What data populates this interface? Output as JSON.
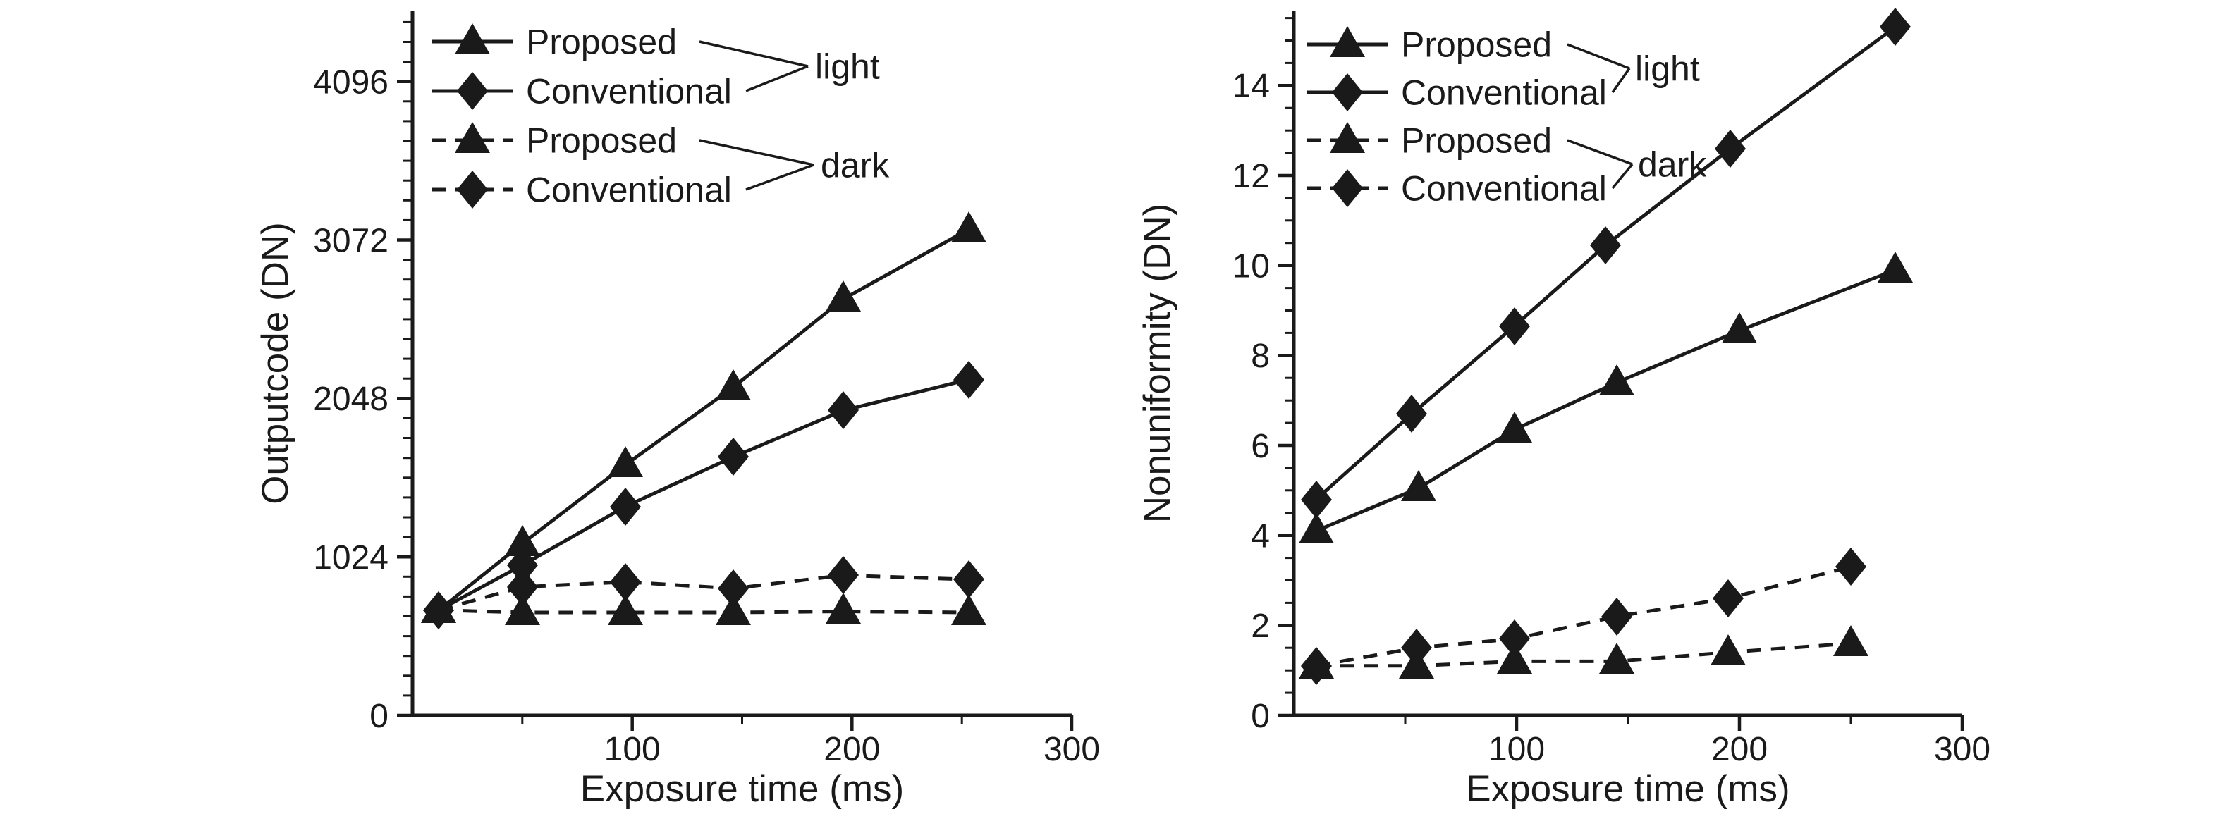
{
  "figure": {
    "background": "#ffffff",
    "ink": "#1a1a1a"
  },
  "chart_data": [
    {
      "type": "line",
      "title": "",
      "xlabel": "Exposure time (ms)",
      "ylabel": "Outputcode (DN)",
      "xlim": [
        0,
        300
      ],
      "ylim": [
        0,
        4550
      ],
      "xticks": [
        100,
        200,
        300
      ],
      "yticks": [
        0,
        1024,
        2048,
        3072,
        4096
      ],
      "x_minor_step": 50,
      "y_minor_step": 128,
      "grid": false,
      "legend_position": "top-left",
      "legend": {
        "rows": [
          {
            "label": "Proposed",
            "marker": "triangle",
            "line": "solid"
          },
          {
            "label": "Conventional",
            "marker": "diamond",
            "line": "solid"
          },
          {
            "label": "Proposed",
            "marker": "triangle",
            "line": "dashed"
          },
          {
            "label": "Conventional",
            "marker": "diamond",
            "line": "dashed"
          }
        ],
        "groups": [
          {
            "label": "light",
            "rows": [
              0,
              1
            ]
          },
          {
            "label": "dark",
            "rows": [
              2,
              3
            ]
          }
        ]
      },
      "series": [
        {
          "name": "Proposed",
          "group": "light",
          "marker": "triangle",
          "line": "solid",
          "x": [
            12,
            50,
            97,
            146,
            196,
            253
          ],
          "y": [
            680,
            1110,
            1620,
            2120,
            2690,
            3140
          ]
        },
        {
          "name": "Conventional",
          "group": "light",
          "marker": "diamond",
          "line": "solid",
          "x": [
            12,
            50,
            97,
            146,
            196,
            253
          ],
          "y": [
            680,
            970,
            1350,
            1670,
            1970,
            2170
          ]
        },
        {
          "name": "Proposed",
          "group": "dark",
          "marker": "triangle",
          "line": "dashed",
          "x": [
            12,
            50,
            97,
            146,
            196,
            253
          ],
          "y": [
            680,
            665,
            665,
            665,
            672,
            665
          ]
        },
        {
          "name": "Conventional",
          "group": "dark",
          "marker": "diamond",
          "line": "dashed",
          "x": [
            12,
            50,
            97,
            146,
            196,
            253
          ],
          "y": [
            680,
            830,
            862,
            820,
            905,
            878
          ]
        }
      ]
    },
    {
      "type": "line",
      "title": "",
      "xlabel": "Exposure time (ms)",
      "ylabel": "Nonuniformity (DN)",
      "xlim": [
        0,
        300
      ],
      "ylim": [
        0,
        15.65
      ],
      "xticks": [
        100,
        200,
        300
      ],
      "yticks": [
        0,
        2,
        4,
        6,
        8,
        10,
        12,
        14
      ],
      "x_minor_step": 50,
      "y_minor_step": 0.5,
      "grid": false,
      "legend_position": "top-left",
      "legend": {
        "rows": [
          {
            "label": "Proposed",
            "marker": "triangle",
            "line": "solid"
          },
          {
            "label": "Conventional",
            "marker": "diamond",
            "line": "solid"
          },
          {
            "label": "Proposed",
            "marker": "triangle",
            "line": "dashed"
          },
          {
            "label": "Conventional",
            "marker": "diamond",
            "line": "dashed"
          }
        ],
        "groups": [
          {
            "label": "light",
            "rows": [
              0,
              1
            ]
          },
          {
            "label": "dark",
            "rows": [
              2,
              3
            ]
          }
        ]
      },
      "series": [
        {
          "name": "Proposed",
          "group": "light",
          "marker": "triangle",
          "line": "solid",
          "x": [
            10,
            56,
            99,
            145,
            200,
            270
          ],
          "y": [
            4.1,
            5.05,
            6.35,
            7.4,
            8.55,
            9.9
          ]
        },
        {
          "name": "Conventional",
          "group": "light",
          "marker": "diamond",
          "line": "solid",
          "x": [
            10,
            53,
            99,
            140,
            196,
            270
          ],
          "y": [
            4.8,
            6.7,
            8.65,
            10.45,
            12.6,
            15.3
          ]
        },
        {
          "name": "Proposed",
          "group": "dark",
          "marker": "triangle",
          "line": "dashed",
          "x": [
            10,
            55,
            99,
            145,
            195,
            250
          ],
          "y": [
            1.1,
            1.1,
            1.2,
            1.2,
            1.4,
            1.6
          ]
        },
        {
          "name": "Conventional",
          "group": "dark",
          "marker": "diamond",
          "line": "dashed",
          "x": [
            10,
            55,
            99,
            145,
            195,
            250
          ],
          "y": [
            1.1,
            1.5,
            1.7,
            2.2,
            2.6,
            3.3
          ]
        }
      ]
    }
  ]
}
